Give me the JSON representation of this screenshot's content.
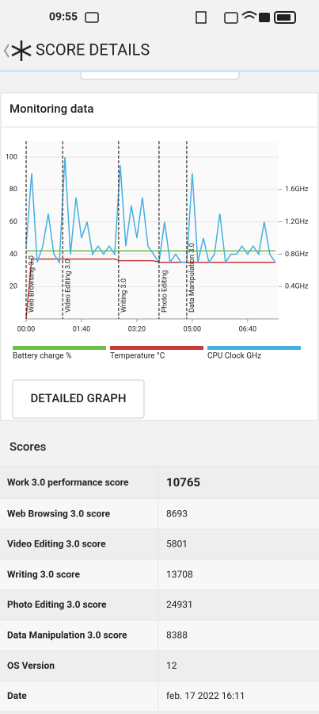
{
  "status_bar": {
    "time": "09:55"
  },
  "header": {
    "title": "SCORE DETAILS"
  },
  "monitoring": {
    "title": "Monitoring data",
    "chart": {
      "type": "line",
      "x": [
        0,
        10,
        20,
        30,
        40,
        50,
        60,
        70,
        80,
        90,
        100,
        110,
        120,
        130,
        140,
        150,
        160,
        170,
        180,
        190,
        200,
        210,
        220,
        230,
        240,
        250,
        260,
        270,
        280,
        290,
        300,
        310,
        320,
        330,
        340,
        350,
        360,
        370,
        380,
        390,
        400,
        410,
        420,
        430,
        440,
        450
      ],
      "xlim": [
        0,
        456
      ],
      "xticks": [
        {
          "value": 0,
          "label": "00:00"
        },
        {
          "value": 100,
          "label": "01:40"
        },
        {
          "value": 200,
          "label": "03:20"
        },
        {
          "value": 300,
          "label": "05:00"
        },
        {
          "value": 400,
          "label": "06:40"
        }
      ],
      "ylim": [
        0,
        100
      ],
      "yticks": [
        20,
        40,
        60,
        80,
        100
      ],
      "y2lim": [
        0,
        2
      ],
      "y2ticks": [
        {
          "value": 0.4,
          "label": "0.4GHz"
        },
        {
          "value": 0.8,
          "label": "0.8GHz"
        },
        {
          "value": 1.2,
          "label": "1.2GHz"
        },
        {
          "value": 1.6,
          "label": "1.6GHz"
        }
      ],
      "series": [
        {
          "name": "Battery charge %",
          "color": "#6cc04a",
          "values": [
            42,
            42,
            42,
            42,
            42,
            42,
            42,
            42,
            42,
            42,
            42,
            42,
            42,
            42,
            42,
            42,
            42,
            42,
            42,
            42,
            42,
            42,
            42,
            42,
            42,
            42,
            42,
            42,
            42,
            42,
            42,
            42,
            42,
            42,
            42,
            42,
            42,
            42,
            42,
            42,
            42,
            42,
            42,
            42,
            42,
            42
          ]
        },
        {
          "name": "Temperature °C",
          "color": "#c83a3a",
          "values": [
            0,
            37,
            37,
            37,
            37,
            37,
            37,
            37,
            37,
            37,
            37,
            37,
            37,
            37,
            37,
            37,
            37,
            36,
            36,
            36,
            36,
            36,
            36,
            36,
            35,
            35,
            35,
            35,
            35,
            35,
            35,
            35,
            35,
            35,
            35,
            35,
            35,
            35,
            35,
            35,
            35,
            35,
            35,
            35,
            35,
            35
          ]
        },
        {
          "name": "CPU Clock GHz",
          "color": "#45b0e0",
          "axis": "y2",
          "values": [
            0.9,
            1.8,
            0.7,
            0.9,
            1.3,
            0.8,
            0.7,
            2.0,
            0.8,
            1.5,
            1.0,
            1.2,
            0.8,
            0.9,
            0.8,
            0.9,
            0.8,
            1.9,
            0.9,
            1.4,
            1.0,
            1.5,
            0.9,
            0.8,
            0.7,
            1.2,
            0.7,
            0.8,
            0.7,
            0.7,
            1.8,
            0.7,
            1.0,
            0.7,
            0.8,
            1.3,
            0.7,
            0.8,
            0.8,
            0.9,
            0.8,
            0.9,
            0.8,
            1.2,
            0.8,
            0.7
          ]
        }
      ],
      "annotations": [
        {
          "x": 0,
          "text": "Web Browsing 3.0"
        },
        {
          "x": 66,
          "text": "Video Editing 3.0"
        },
        {
          "x": 167,
          "text": "Writing 3.0"
        },
        {
          "x": 240,
          "text": "Photo Editing"
        },
        {
          "x": 290,
          "text": "Data Manipulation 3.0"
        }
      ]
    },
    "button": "DETAILED GRAPH"
  },
  "scores": {
    "title": "Scores",
    "rows": [
      [
        "Work 3.0 performance score",
        "10765"
      ],
      [
        "Web Browsing 3.0 score",
        "8693"
      ],
      [
        "Video Editing 3.0 score",
        "5801"
      ],
      [
        "Writing 3.0 score",
        "13708"
      ],
      [
        "Photo Editing 3.0 score",
        "24931"
      ],
      [
        "Data Manipulation 3.0 score",
        "8388"
      ],
      [
        "OS Version",
        "12"
      ],
      [
        "Date",
        "feb. 17 2022 16:11"
      ]
    ]
  }
}
